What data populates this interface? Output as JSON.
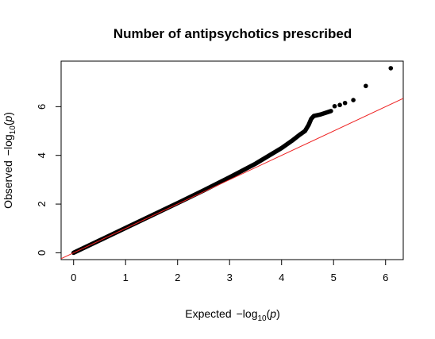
{
  "chart_data": {
    "type": "scatter",
    "title": "Number of antipsychotics prescribed",
    "xlabel": {
      "prefix": "Expected",
      "minus": "−",
      "log": "log",
      "sub": "10",
      "paren_open": "(",
      "var": "p",
      "paren_close": ")"
    },
    "ylabel": {
      "prefix": "Observed",
      "minus": "−",
      "log": "log",
      "sub": "10",
      "paren_open": "(",
      "var": "p",
      "paren_close": ")"
    },
    "xlim": [
      -0.24,
      6.34
    ],
    "ylim": [
      -0.28,
      7.87
    ],
    "x_ticks": [
      0,
      1,
      2,
      3,
      4,
      5,
      6
    ],
    "x_tick_labels": [
      "0",
      "1",
      "2",
      "3",
      "4",
      "5",
      "6"
    ],
    "y_ticks": [
      0,
      2,
      4,
      6
    ],
    "y_tick_labels": [
      "0",
      "2",
      "4",
      "6"
    ],
    "grid": false,
    "reference_line": {
      "slope": 1,
      "intercept": 0,
      "color": "#ee2222"
    },
    "point_color": "#000000",
    "curve_outline": [
      [
        0,
        0
      ],
      [
        1,
        1.02
      ],
      [
        2,
        2.04
      ],
      [
        2.5,
        2.56
      ],
      [
        3,
        3.1
      ],
      [
        3.5,
        3.66
      ],
      [
        4,
        4.3
      ],
      [
        4.2,
        4.6
      ],
      [
        4.35,
        4.85
      ],
      [
        4.45,
        5.0
      ],
      [
        4.52,
        5.25
      ],
      [
        4.57,
        5.5
      ],
      [
        4.62,
        5.62
      ],
      [
        4.75,
        5.68
      ],
      [
        4.95,
        5.82
      ]
    ],
    "points": [
      [
        5.02,
        6.02
      ],
      [
        5.12,
        6.07
      ],
      [
        5.22,
        6.15
      ],
      [
        5.38,
        6.27
      ],
      [
        5.62,
        6.85
      ],
      [
        6.1,
        7.58
      ]
    ]
  }
}
